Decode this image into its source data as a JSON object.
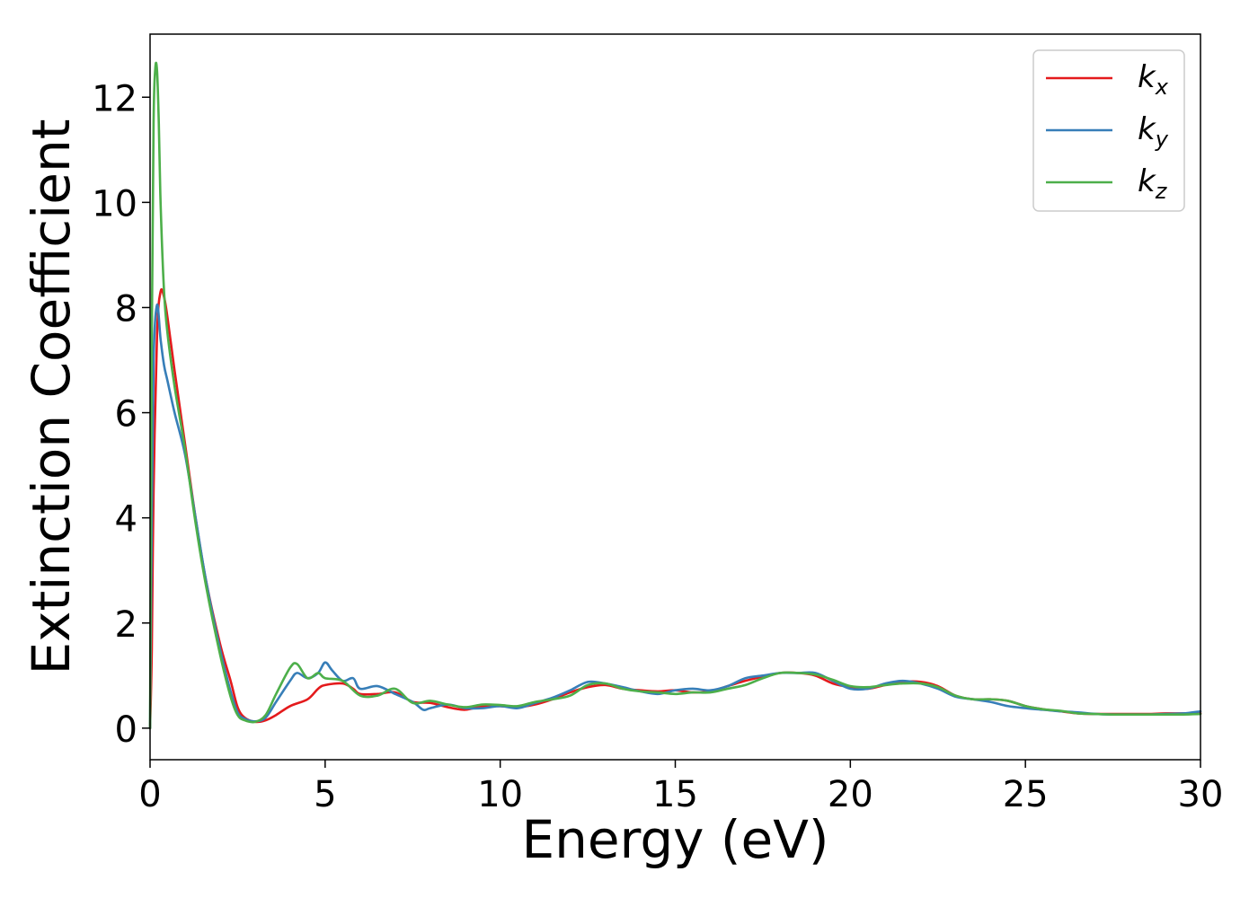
{
  "chart_data": {
    "type": "line",
    "xlabel": "Energy (eV)",
    "ylabel": "Extinction Coefficient",
    "xlim": [
      0,
      30
    ],
    "ylim": [
      -0.6,
      13.2
    ],
    "xticks": [
      0,
      5,
      10,
      15,
      20,
      25,
      30
    ],
    "yticks": [
      0,
      2,
      4,
      6,
      8,
      10,
      12
    ],
    "grid": false,
    "legend_position": "top-right",
    "series": [
      {
        "name": "k_x",
        "legend_base": "k",
        "legend_sub": "x",
        "color": "#e41a1c",
        "x": [
          0,
          0.05,
          0.1,
          0.2,
          0.3,
          0.4,
          0.5,
          0.7,
          1.0,
          1.3,
          1.6,
          2.0,
          2.3,
          2.5,
          2.7,
          3.0,
          3.3,
          3.6,
          4.0,
          4.5,
          4.8,
          5.0,
          5.5,
          5.8,
          6.0,
          6.5,
          7.0,
          7.5,
          8.0,
          8.5,
          9.0,
          9.5,
          10.0,
          10.5,
          11.0,
          11.5,
          12.0,
          12.5,
          13.0,
          13.5,
          14.0,
          14.5,
          15.0,
          15.5,
          16.0,
          16.5,
          17.0,
          17.5,
          18.0,
          18.5,
          19.0,
          19.5,
          20.0,
          20.5,
          21.0,
          21.5,
          22.0,
          22.5,
          23.0,
          23.5,
          24.0,
          24.5,
          25.0,
          25.5,
          26.0,
          26.5,
          27.0,
          27.5,
          28.0,
          28.5,
          29.0,
          29.5,
          30.0
        ],
        "values": [
          0,
          1.5,
          4.5,
          7.5,
          8.3,
          8.2,
          7.8,
          6.8,
          5.4,
          4.0,
          2.8,
          1.6,
          0.9,
          0.4,
          0.2,
          0.12,
          0.15,
          0.25,
          0.42,
          0.55,
          0.75,
          0.82,
          0.85,
          0.75,
          0.65,
          0.65,
          0.68,
          0.5,
          0.48,
          0.4,
          0.35,
          0.42,
          0.42,
          0.4,
          0.45,
          0.55,
          0.68,
          0.78,
          0.82,
          0.75,
          0.72,
          0.7,
          0.72,
          0.68,
          0.7,
          0.8,
          0.9,
          0.98,
          1.05,
          1.05,
          1.0,
          0.85,
          0.78,
          0.75,
          0.82,
          0.88,
          0.88,
          0.8,
          0.62,
          0.55,
          0.55,
          0.52,
          0.42,
          0.36,
          0.32,
          0.28,
          0.27,
          0.27,
          0.27,
          0.27,
          0.28,
          0.28,
          0.28
        ]
      },
      {
        "name": "k_y",
        "legend_base": "k",
        "legend_sub": "y",
        "color": "#377eb8",
        "x": [
          0,
          0.05,
          0.1,
          0.2,
          0.3,
          0.4,
          0.5,
          0.7,
          1.0,
          1.3,
          1.6,
          2.0,
          2.3,
          2.5,
          2.7,
          3.0,
          3.3,
          3.6,
          4.0,
          4.2,
          4.5,
          4.8,
          5.0,
          5.2,
          5.5,
          5.8,
          6.0,
          6.5,
          7.0,
          7.5,
          7.8,
          8.0,
          8.5,
          9.0,
          9.5,
          10.0,
          10.5,
          11.0,
          11.5,
          12.0,
          12.5,
          13.0,
          13.5,
          14.0,
          14.5,
          15.0,
          15.5,
          16.0,
          16.5,
          17.0,
          17.5,
          18.0,
          18.5,
          19.0,
          19.5,
          20.0,
          20.5,
          21.0,
          21.5,
          22.0,
          22.5,
          23.0,
          23.5,
          24.0,
          24.5,
          25.0,
          25.5,
          26.0,
          26.5,
          27.0,
          27.5,
          28.0,
          28.5,
          29.0,
          29.5,
          30.0
        ],
        "values": [
          0,
          4.0,
          7.0,
          8.05,
          7.4,
          6.9,
          6.6,
          6.0,
          5.2,
          4.0,
          2.8,
          1.5,
          0.7,
          0.3,
          0.18,
          0.13,
          0.2,
          0.5,
          0.9,
          1.05,
          0.95,
          1.05,
          1.25,
          1.1,
          0.9,
          0.95,
          0.75,
          0.8,
          0.65,
          0.5,
          0.35,
          0.38,
          0.45,
          0.38,
          0.38,
          0.42,
          0.38,
          0.48,
          0.58,
          0.72,
          0.88,
          0.85,
          0.78,
          0.7,
          0.65,
          0.72,
          0.75,
          0.72,
          0.8,
          0.95,
          1.0,
          1.05,
          1.05,
          1.05,
          0.9,
          0.75,
          0.75,
          0.85,
          0.9,
          0.85,
          0.75,
          0.6,
          0.55,
          0.5,
          0.42,
          0.38,
          0.35,
          0.32,
          0.3,
          0.27,
          0.26,
          0.26,
          0.26,
          0.27,
          0.28,
          0.32
        ]
      },
      {
        "name": "k_z",
        "legend_base": "k",
        "legend_sub": "z",
        "color": "#4daf4a",
        "x": [
          0,
          0.05,
          0.1,
          0.15,
          0.2,
          0.25,
          0.3,
          0.4,
          0.5,
          0.7,
          1.0,
          1.3,
          1.6,
          2.0,
          2.3,
          2.5,
          2.7,
          3.0,
          3.3,
          3.6,
          4.0,
          4.2,
          4.5,
          4.8,
          5.0,
          5.5,
          6.0,
          6.5,
          7.0,
          7.5,
          8.0,
          8.5,
          9.0,
          9.5,
          10.0,
          10.5,
          11.0,
          11.5,
          12.0,
          12.5,
          13.0,
          13.5,
          14.0,
          14.5,
          15.0,
          15.5,
          16.0,
          16.5,
          17.0,
          17.5,
          18.0,
          18.5,
          19.0,
          19.5,
          20.0,
          20.5,
          21.0,
          21.5,
          22.0,
          22.5,
          23.0,
          23.5,
          24.0,
          24.5,
          25.0,
          25.5,
          26.0,
          26.5,
          27.0,
          27.5,
          28.0,
          28.5,
          29.0,
          29.5,
          30.0
        ],
        "values": [
          0,
          7.5,
          11.5,
          12.55,
          12.5,
          11.5,
          10.0,
          8.3,
          7.5,
          6.5,
          5.3,
          3.9,
          2.7,
          1.4,
          0.6,
          0.25,
          0.15,
          0.12,
          0.25,
          0.65,
          1.15,
          1.22,
          0.95,
          1.05,
          0.95,
          0.9,
          0.62,
          0.62,
          0.75,
          0.48,
          0.52,
          0.45,
          0.4,
          0.45,
          0.44,
          0.42,
          0.5,
          0.55,
          0.62,
          0.82,
          0.85,
          0.75,
          0.7,
          0.68,
          0.65,
          0.68,
          0.68,
          0.75,
          0.82,
          0.95,
          1.05,
          1.05,
          1.02,
          0.92,
          0.8,
          0.78,
          0.82,
          0.85,
          0.85,
          0.78,
          0.62,
          0.55,
          0.55,
          0.52,
          0.42,
          0.36,
          0.33,
          0.28,
          0.27,
          0.26,
          0.26,
          0.26,
          0.26,
          0.26,
          0.27
        ]
      }
    ]
  }
}
